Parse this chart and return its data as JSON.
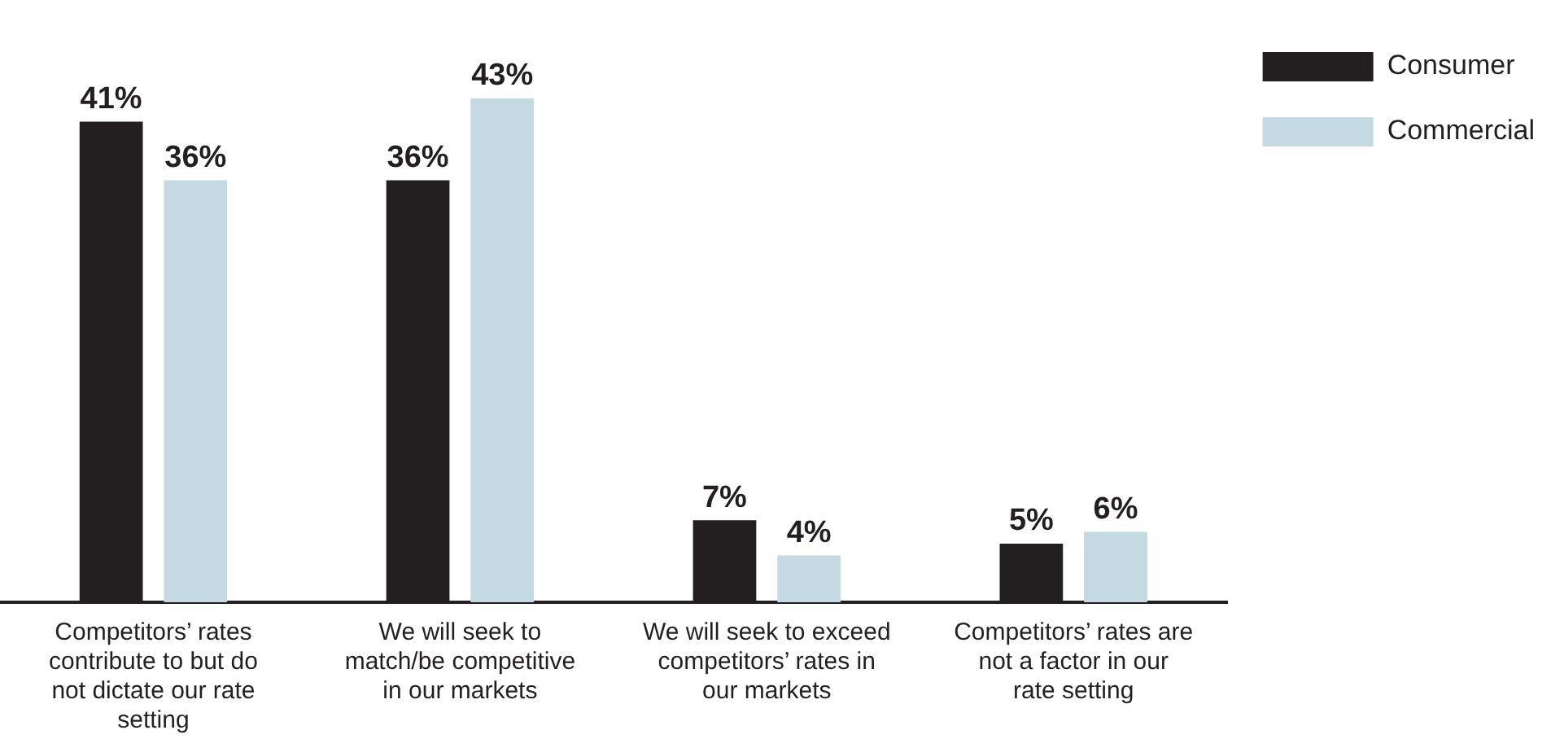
{
  "chart_data": {
    "type": "bar",
    "categories": [
      "Competitors’ rates contribute to but do not dictate our rate setting",
      "We will seek to match/be competitive in our markets",
      "We will seek to exceed competitors’ rates in our markets",
      "Competitors’ rates are not a factor in our rate setting"
    ],
    "series": [
      {
        "name": "Consumer",
        "color": "#231f20",
        "values": [
          41,
          36,
          7,
          5
        ],
        "value_labels": [
          "41%",
          "36%",
          "7%",
          "5%"
        ]
      },
      {
        "name": "Commercial",
        "color": "#c5d9e2",
        "values": [
          36,
          43,
          4,
          6
        ],
        "value_labels": [
          "36%",
          "43%",
          "4%",
          "6%"
        ]
      }
    ],
    "legend": "right",
    "grid": false
  }
}
